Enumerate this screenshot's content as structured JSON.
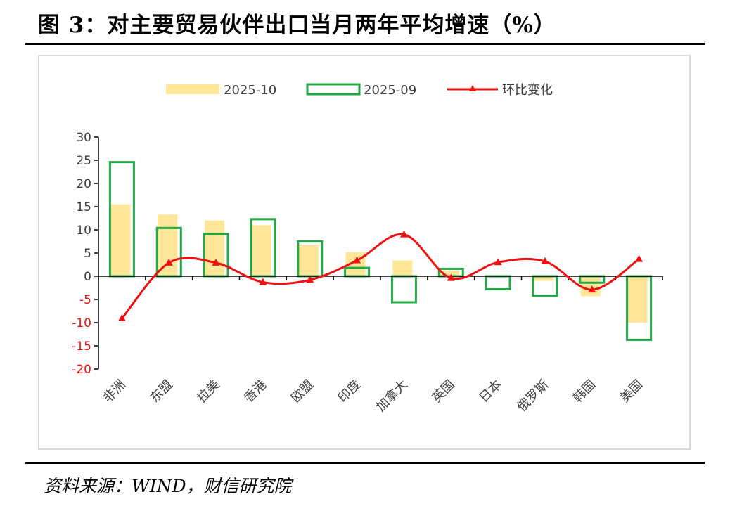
{
  "title": "图 3：对主要贸易伙伴出口当月两年平均增速（%）",
  "source": "资料来源：WIND，财信研究院",
  "colors": {
    "bar_current": "#ffe699",
    "bar_prev_outline": "#22a844",
    "line": "#ee1111",
    "axis": "#000000",
    "negative_tick": "#ee1111"
  },
  "chart_data": {
    "type": "bar",
    "title": "",
    "xlabel": "",
    "ylabel": "",
    "ylim": [
      -20,
      30
    ],
    "yticks": [
      30,
      25,
      20,
      15,
      10,
      5,
      0,
      -5,
      -10,
      -15,
      -20
    ],
    "categories": [
      "非洲",
      "东盟",
      "拉美",
      "香港",
      "欧盟",
      "印度",
      "加拿大",
      "英国",
      "日本",
      "俄罗斯",
      "韩国",
      "美国"
    ],
    "series": [
      {
        "name": "2025-10",
        "kind": "bar-filled",
        "values": [
          15.5,
          13.3,
          12.0,
          11.0,
          6.7,
          5.2,
          3.4,
          1.2,
          0.2,
          -1.0,
          -4.3,
          -10.0
        ]
      },
      {
        "name": "2025-09",
        "kind": "bar-outline",
        "values": [
          24.6,
          10.4,
          9.1,
          12.3,
          7.5,
          1.8,
          -5.6,
          1.6,
          -2.8,
          -4.2,
          -1.4,
          -13.7
        ]
      },
      {
        "name": "环比变化",
        "kind": "line-triangle",
        "values": [
          -9.1,
          2.9,
          2.9,
          -1.3,
          -0.8,
          3.4,
          9.0,
          -0.4,
          3.0,
          3.2,
          -2.9,
          3.7
        ]
      }
    ],
    "legend_position": "top"
  }
}
